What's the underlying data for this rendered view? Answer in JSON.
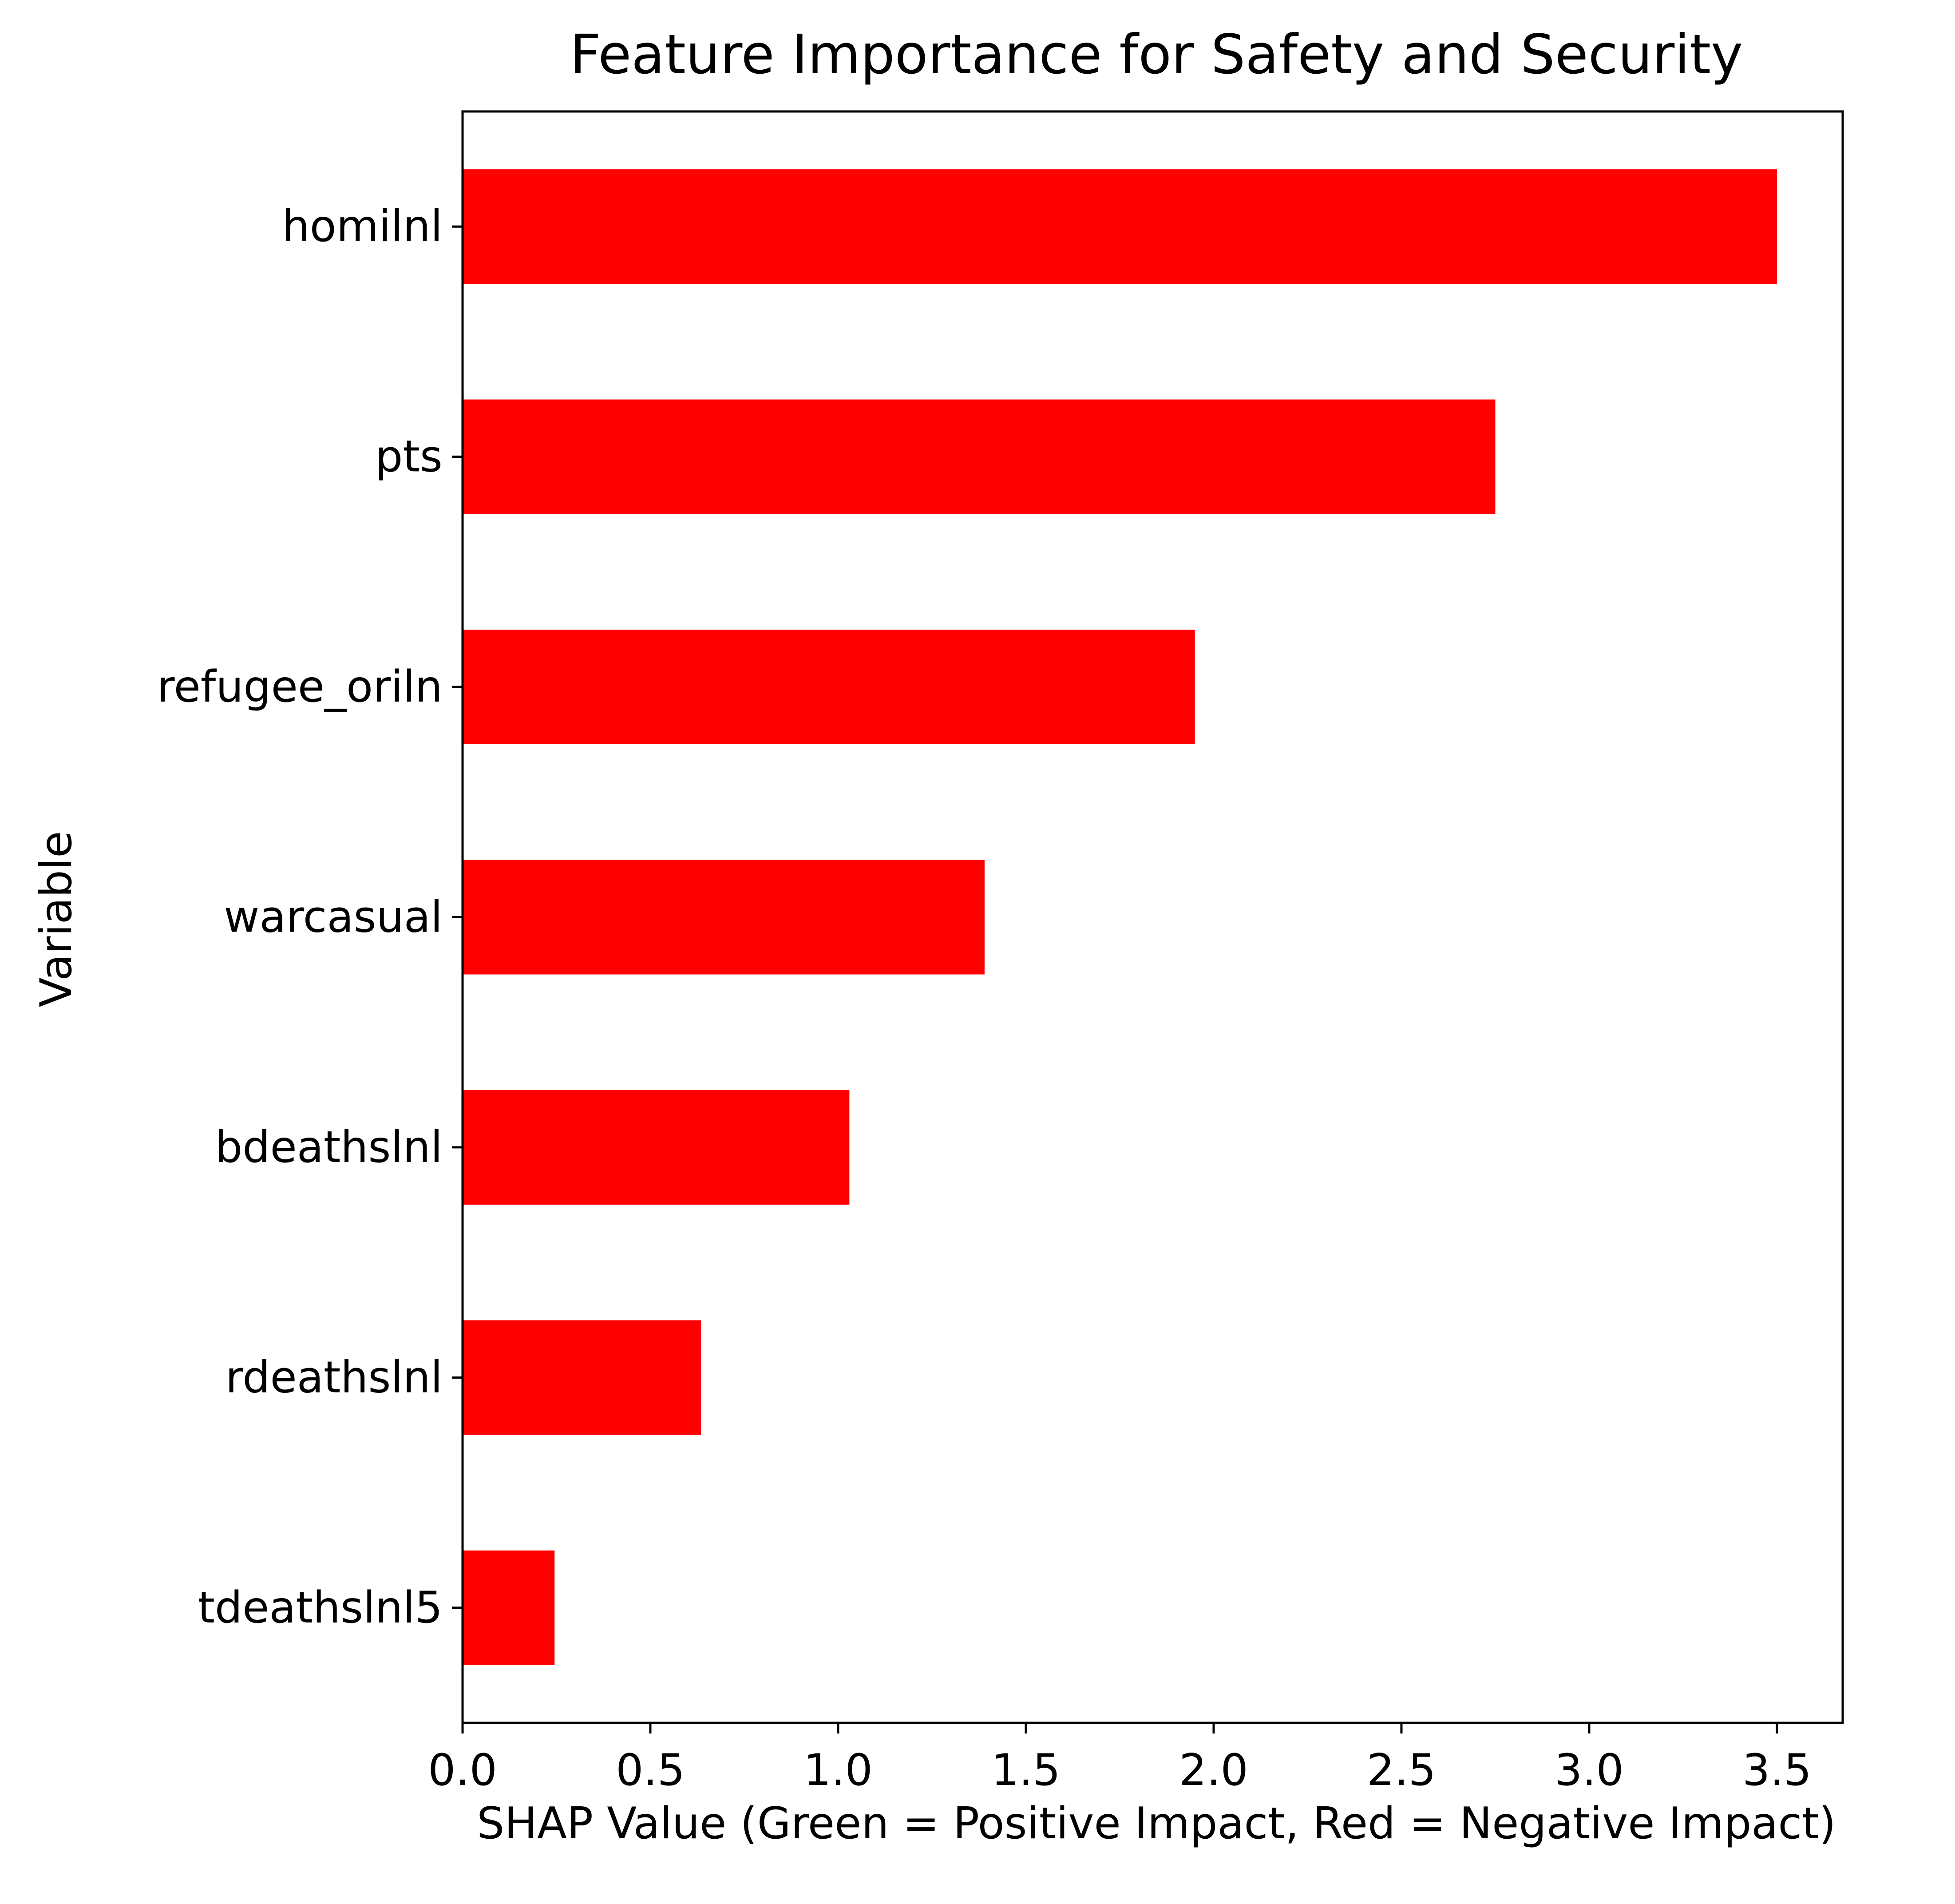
{
  "chart_data": {
    "type": "bar",
    "orientation": "horizontal",
    "title": "Feature Importance for Safety and Security",
    "xlabel": "SHAP Value (Green = Positive Impact, Red = Negative Impact)",
    "ylabel": "Variable",
    "categories": [
      "homilnl",
      "pts",
      "refugee_oriln",
      "warcasual",
      "bdeathslnl",
      "rdeathslnl",
      "tdeathslnl5"
    ],
    "values": [
      3.5,
      2.75,
      1.95,
      1.39,
      1.03,
      0.635,
      0.245
    ],
    "bar_color": "#ff0000",
    "xlim": [
      0,
      3.675
    ],
    "xticks": [
      0.0,
      0.5,
      1.0,
      1.5,
      2.0,
      2.5,
      3.0,
      3.5
    ],
    "xtick_labels": [
      "0.0",
      "0.5",
      "1.0",
      "1.5",
      "2.0",
      "2.5",
      "3.0",
      "3.5"
    ],
    "grid": false,
    "legend": "none"
  }
}
